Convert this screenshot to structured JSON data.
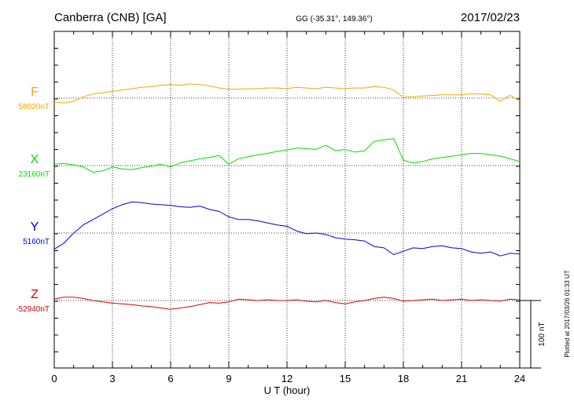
{
  "header": {
    "station": "Canberra (CNB)  [GA]",
    "coords": "GG (-35.31°, 149.36°)",
    "date": "2017/02/23"
  },
  "plotted_note": "Plotted at 2017/03/26 01:33 UT",
  "chart_data": {
    "type": "line",
    "xlabel": "U T (hour)",
    "xlim": [
      0,
      24
    ],
    "xticks": [
      "0",
      "3",
      "6",
      "9",
      "12",
      "15",
      "18",
      "21",
      "24"
    ],
    "y_units": "nT",
    "scale_bar": {
      "label": "100 nT",
      "value": 100
    },
    "series": [
      {
        "name": "F",
        "baseline_label": "58020nT",
        "baseline": 58020,
        "color": "#f0a800",
        "x": [
          0,
          0.5,
          1,
          1.5,
          2,
          2.5,
          3,
          3.5,
          4,
          4.5,
          5,
          5.5,
          6,
          6.5,
          7,
          7.5,
          8,
          8.5,
          9,
          9.5,
          10,
          10.5,
          11,
          11.5,
          12,
          12.5,
          13,
          13.5,
          14,
          14.5,
          15,
          15.5,
          16,
          16.5,
          17,
          17.5,
          18,
          18.5,
          19,
          19.5,
          20,
          20.5,
          21,
          21.5,
          22,
          22.5,
          23,
          23.5,
          24
        ],
        "y": [
          58014,
          58013,
          58015,
          58022,
          58026,
          58028,
          58030,
          58032,
          58034,
          58036,
          58037,
          58039,
          58040,
          58039,
          58041,
          58040,
          58038,
          58035,
          58033,
          58033,
          58034,
          58034,
          58035,
          58035,
          58034,
          58036,
          58035,
          58034,
          58036,
          58035,
          58034,
          58035,
          58035,
          58037,
          58036,
          58032,
          58021,
          58022,
          58023,
          58024,
          58025,
          58025,
          58025,
          58026,
          58026,
          58025,
          58015,
          58024,
          58016
        ]
      },
      {
        "name": "X",
        "baseline_label": "23160nT",
        "baseline": 23160,
        "color": "#00e000",
        "x": [
          0,
          0.5,
          1,
          1.5,
          2,
          2.5,
          3,
          3.5,
          4,
          4.5,
          5,
          5.5,
          6,
          6.5,
          7,
          7.5,
          8,
          8.5,
          9,
          9.5,
          10,
          10.5,
          11,
          11.5,
          12,
          12.5,
          13,
          13.5,
          14,
          14.5,
          15,
          15.5,
          16,
          16.5,
          17,
          17.5,
          18,
          18.5,
          19,
          19.5,
          20,
          20.5,
          21,
          21.5,
          22,
          22.5,
          23,
          23.5,
          24
        ],
        "y": [
          23162,
          23163,
          23161,
          23158,
          23150,
          23152,
          23158,
          23155,
          23154,
          23157,
          23159,
          23162,
          23158,
          23164,
          23167,
          23170,
          23172,
          23175,
          23162,
          23170,
          23173,
          23176,
          23178,
          23181,
          23183,
          23186,
          23185,
          23184,
          23190,
          23182,
          23184,
          23180,
          23182,
          23196,
          23198,
          23200,
          23168,
          23164,
          23166,
          23170,
          23172,
          23174,
          23176,
          23178,
          23178,
          23176,
          23174,
          23170,
          23166
        ]
      },
      {
        "name": "Y",
        "baseline_label": "5160nT",
        "baseline": 5160,
        "color": "#0000e0",
        "x": [
          0,
          0.5,
          1,
          1.5,
          2,
          2.5,
          3,
          3.5,
          4,
          4.5,
          5,
          5.5,
          6,
          6.5,
          7,
          7.5,
          8,
          8.5,
          9,
          9.5,
          10,
          10.5,
          11,
          11.5,
          12,
          12.5,
          13,
          13.5,
          14,
          14.5,
          15,
          15.5,
          16,
          16.5,
          17,
          17.5,
          18,
          18.5,
          19,
          19.5,
          20,
          20.5,
          21,
          21.5,
          22,
          22.5,
          23,
          23.5,
          24
        ],
        "y": [
          5136,
          5145,
          5160,
          5172,
          5180,
          5188,
          5196,
          5202,
          5206,
          5205,
          5203,
          5202,
          5201,
          5199,
          5198,
          5200,
          5195,
          5192,
          5184,
          5180,
          5180,
          5178,
          5175,
          5172,
          5170,
          5163,
          5159,
          5160,
          5158,
          5153,
          5151,
          5150,
          5148,
          5140,
          5138,
          5128,
          5133,
          5138,
          5137,
          5140,
          5141,
          5138,
          5137,
          5132,
          5130,
          5132,
          5126,
          5130,
          5129
        ]
      },
      {
        "name": "Z",
        "baseline_label": "-52940nT",
        "baseline": -52940,
        "color": "#e00000",
        "x": [
          0,
          0.5,
          1,
          1.5,
          2,
          2.5,
          3,
          3.5,
          4,
          4.5,
          5,
          5.5,
          6,
          6.5,
          7,
          7.5,
          8,
          8.5,
          9,
          9.5,
          10,
          10.5,
          11,
          11.5,
          12,
          12.5,
          13,
          13.5,
          14,
          14.5,
          15,
          15.5,
          16,
          16.5,
          17,
          17.5,
          18,
          18.5,
          19,
          19.5,
          20,
          20.5,
          21,
          21.5,
          22,
          22.5,
          23,
          23.5,
          24
        ],
        "y": [
          -52938,
          -52935,
          -52935,
          -52937,
          -52940,
          -52942,
          -52944,
          -52945,
          -52946,
          -52948,
          -52949,
          -52951,
          -52953,
          -52951,
          -52949,
          -52946,
          -52943,
          -52944,
          -52942,
          -52938,
          -52939,
          -52940,
          -52939,
          -52940,
          -52940,
          -52939,
          -52941,
          -52942,
          -52940,
          -52943,
          -52945,
          -52942,
          -52940,
          -52937,
          -52935,
          -52937,
          -52941,
          -52940,
          -52939,
          -52938,
          -52940,
          -52939,
          -52938,
          -52940,
          -52939,
          -52940,
          -52941,
          -52938,
          -52939
        ]
      }
    ]
  }
}
